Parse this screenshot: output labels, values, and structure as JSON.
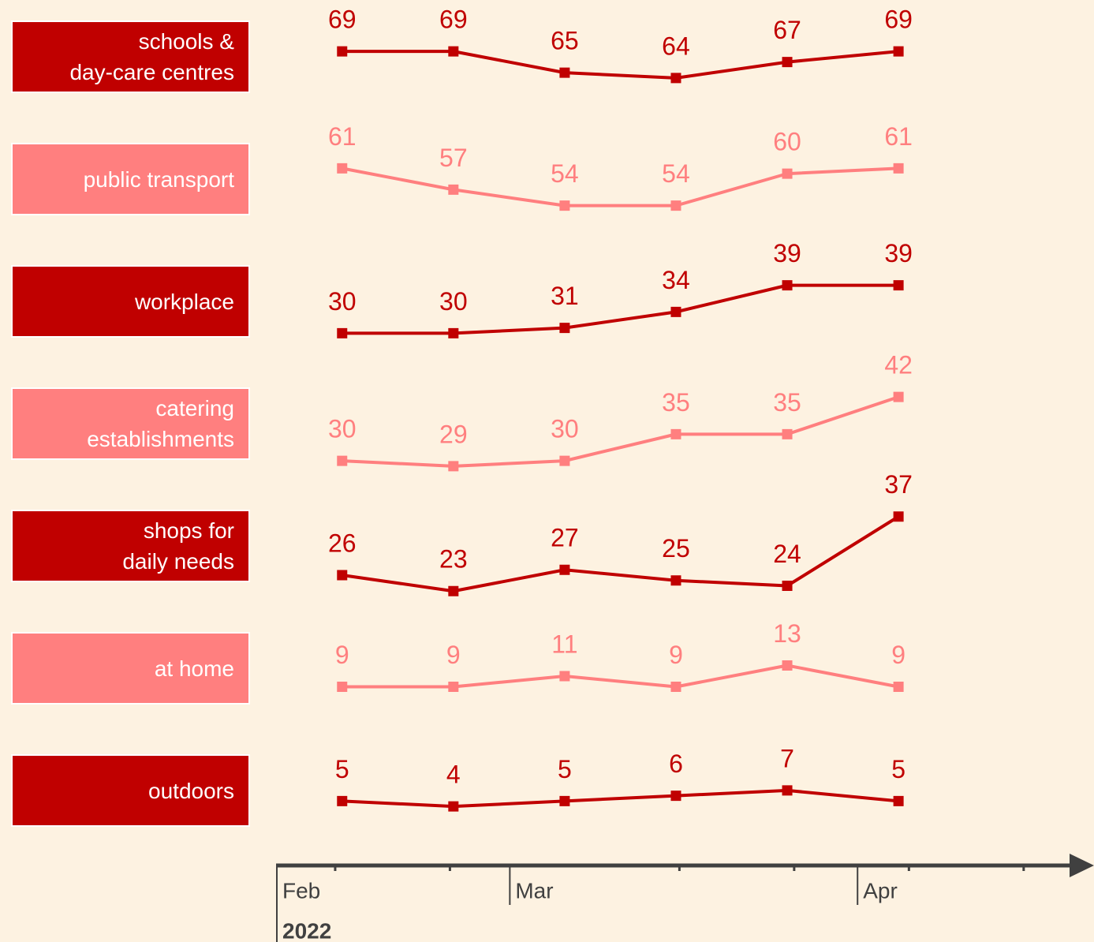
{
  "chart_data": {
    "type": "line",
    "x": [
      2.52,
      2.84,
      3.16,
      3.48,
      3.8,
      4.12
    ],
    "xlim": [
      2.33,
      4.68
    ],
    "xticks": [
      {
        "value": 2.33,
        "label": "Feb"
      },
      {
        "value": 3,
        "label": "Mar"
      },
      {
        "value": 4,
        "label": "Apr"
      }
    ],
    "xminorticks": [
      2.5,
      2.83,
      3.49,
      3.82,
      4.15,
      4.48
    ],
    "year_label": "2022",
    "series": [
      {
        "name": "schools &\nday-care centres",
        "color": "#c00000",
        "values": [
          69,
          69,
          65,
          64,
          67,
          69
        ]
      },
      {
        "name": "public transport",
        "color": "#ff7f7f",
        "values": [
          61,
          57,
          54,
          54,
          60,
          61
        ]
      },
      {
        "name": "workplace",
        "color": "#c00000",
        "values": [
          30,
          30,
          31,
          34,
          39,
          39
        ]
      },
      {
        "name": "catering\nestablishments",
        "color": "#ff7f7f",
        "values": [
          30,
          29,
          30,
          35,
          35,
          42
        ]
      },
      {
        "name": "shops for\ndaily needs",
        "color": "#c00000",
        "values": [
          26,
          23,
          27,
          25,
          24,
          37
        ]
      },
      {
        "name": "at home",
        "color": "#ff7f7f",
        "values": [
          9,
          9,
          11,
          9,
          13,
          9
        ]
      },
      {
        "name": "outdoors",
        "color": "#c00000",
        "values": [
          5,
          4,
          5,
          6,
          7,
          5
        ]
      }
    ]
  }
}
